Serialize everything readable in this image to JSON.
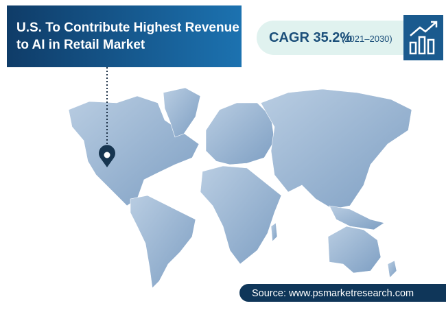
{
  "header": {
    "title_lines": [
      "U.S. To Contribute Highest Revenue",
      "to AI in Retail Market"
    ]
  },
  "badge": {
    "metric": "CAGR 35.2%",
    "period": "(2021–2030)"
  },
  "footer": {
    "source": "Source: www.psmarketresearch.com"
  }
}
